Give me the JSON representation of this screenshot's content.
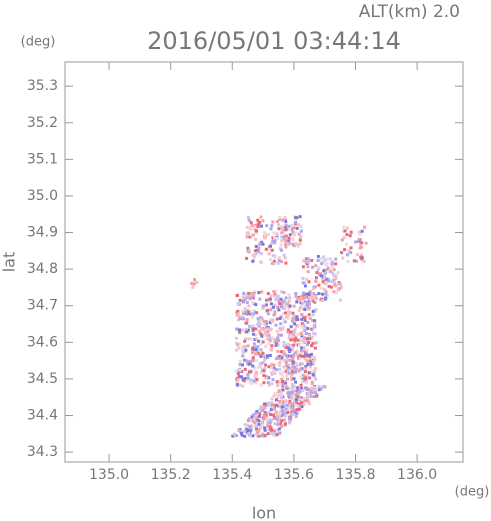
{
  "chart_data": {
    "type": "map",
    "title": "2016/05/01 03:44:14",
    "subtitle": "ALT(km) 2.0",
    "y_unit": "(deg)",
    "x_unit": "(deg)",
    "ylabel": "lat",
    "xlabel": "lon",
    "xlim": [
      134.857,
      136.149
    ],
    "ylim": [
      34.273,
      35.366
    ],
    "xticks": [
      {
        "value": 135.0,
        "label": "135.0"
      },
      135.2,
      135.4,
      135.6,
      135.8,
      {
        "value": 136.0,
        "label": "136.0"
      }
    ],
    "yticks": [
      34.3,
      34.4,
      34.5,
      34.6,
      34.7,
      34.8,
      34.9,
      {
        "value": 35.0,
        "label": "35.0"
      },
      35.1,
      35.2,
      35.3
    ]
  }
}
